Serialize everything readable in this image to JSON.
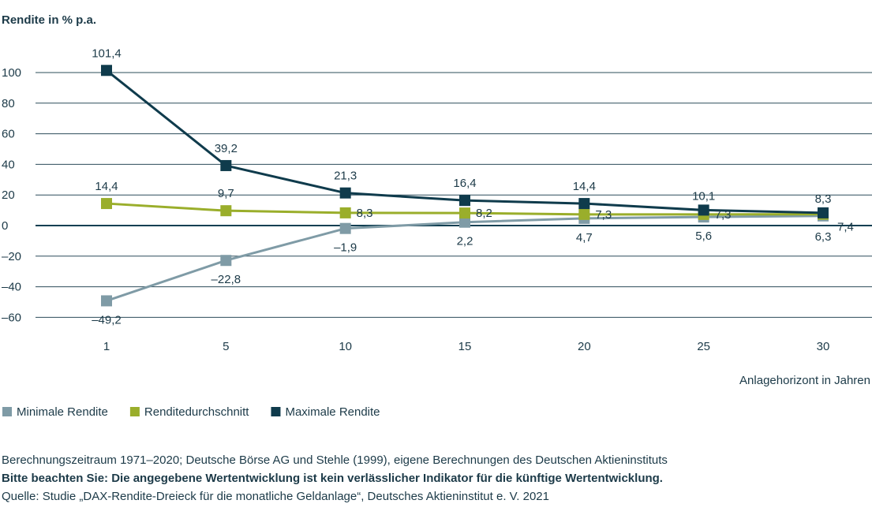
{
  "chart_data": {
    "type": "line",
    "ylabel": "Rendite in % p.a.",
    "xlabel": "Anlagehorizont in Jahren",
    "x": [
      1,
      5,
      10,
      15,
      20,
      25,
      30
    ],
    "x_tick_labels": [
      "1",
      "5",
      "10",
      "15",
      "20",
      "25",
      "30"
    ],
    "y_ticks": [
      100,
      80,
      60,
      40,
      20,
      0,
      -20,
      -40,
      -60
    ],
    "y_tick_labels": [
      "100",
      "80",
      "60",
      "40",
      "20",
      "0",
      "–20",
      "–40",
      "–60"
    ],
    "ylim": [
      -60,
      100
    ],
    "grid": true,
    "legend_position": "bottom-left",
    "series": [
      {
        "name": "Minimale Rendite",
        "color": "#7f9ba6",
        "values": [
          -49.2,
          -22.8,
          -1.9,
          2.2,
          4.7,
          5.6,
          6.3
        ],
        "labels": [
          "–49,2",
          "–22,8",
          "–1,9",
          "2,2",
          "4,7",
          "5,6",
          "6,3"
        ]
      },
      {
        "name": "Renditedurchschnitt",
        "color": "#9aae2b",
        "values": [
          14.4,
          9.7,
          8.3,
          8.2,
          7.3,
          7.3,
          7.4
        ],
        "labels": [
          "14,4",
          "9,7",
          "8,3",
          "8,2",
          "7,3",
          "7,3",
          "7,4"
        ]
      },
      {
        "name": "Maximale Rendite",
        "color": "#0f3b4c",
        "values": [
          101.4,
          39.2,
          21.3,
          16.4,
          14.4,
          10.1,
          8.3
        ],
        "labels": [
          "101,4",
          "39,2",
          "21,3",
          "16,4",
          "14,4",
          "10,1",
          "8,3"
        ]
      }
    ]
  },
  "footnotes": {
    "line1": "Berechnungszeitraum 1971–2020; Deutsche Börse AG und Stehle (1999), eigene Berechnungen des Deutschen Aktieninstituts",
    "line2": "Bitte beachten Sie: Die angegebene Wertentwicklung ist kein verlässlicher Indikator für die künftige Wertentwicklung.",
    "line3": "Quelle: Studie „DAX-Rendite-Dreieck für die monatliche Geldanlage“, Deutsches Aktieninstitut e. V. 2021"
  }
}
